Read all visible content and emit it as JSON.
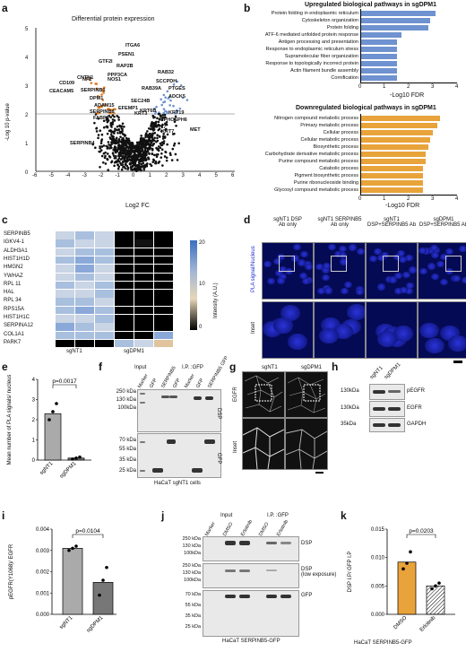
{
  "panels": {
    "a": {
      "letter": "a",
      "title": "Differential protein expression",
      "ylabel": "-Log 10 p-value",
      "xlabel": "Log2 FC",
      "xticks": [
        "-6",
        "-5",
        "-4",
        "-3",
        "-2",
        "-1",
        "0",
        "1",
        "2",
        "3",
        "4",
        "5",
        "6"
      ],
      "yticks": [
        "0",
        "1",
        "2",
        "3",
        "4",
        "5"
      ],
      "labels_up": [
        "RAB32",
        "SCCPDH",
        "RAB39A",
        "PTGES",
        "ADCK5",
        "KRT6B",
        "KRT19",
        "MPHOSPH6",
        "KRT17",
        "KRT7",
        "MET",
        "SEC24B"
      ],
      "labels_down": [
        "ITGA6",
        "PSEN1",
        "GTF2I",
        "RAP2B",
        "PPP3CA",
        "NF2",
        "CNTN1",
        "CD109",
        "CEACAM5",
        "SERPINB1",
        "DPM1",
        "ADAM15",
        "SERPINB8",
        "FABP5",
        "SERPINB4",
        "NOS1",
        "KRT3",
        "EFEMP1"
      ]
    },
    "b": {
      "letter": "b",
      "up_title": "Upregulated biological pathways in sgDPM1",
      "up_terms": [
        "Protein folding in endoplasmic reticulum",
        "Cytoskeleton organization",
        "Protein folding",
        "ATF-6 mediated unfolded protein response",
        "Antigen processing and presentation",
        "Response to endoplasmic reticulum stress",
        "Supramolecular fiber organization",
        "Response to topologically incorrect protein",
        "Actin filament bundle assembly",
        "Cornification"
      ],
      "up_values": [
        3.1,
        2.9,
        2.8,
        1.7,
        1.5,
        1.5,
        1.5,
        1.5,
        1.5,
        1.5
      ],
      "down_title": "Downregulated biological pathways in sgDPM1",
      "down_terms": [
        "Nitrogen compound metabolic process",
        "Primary metabolic process",
        "Cellular process",
        "Cellular metabolic process",
        "Biosynthetic process",
        "Carbohydrate derivative metabolic process",
        "Purine compound metabolic process",
        "Catabolic process",
        "Pigment biosynthetic process",
        "Purine ribonucleoside binding",
        "Glycosyl compound metabolic process"
      ],
      "down_values": [
        3.3,
        3.2,
        3.0,
        2.9,
        2.8,
        2.7,
        2.7,
        2.6,
        2.6,
        2.6,
        2.6
      ],
      "xlabel": "-Log10 FDR",
      "xticks": [
        "0",
        "1",
        "2",
        "3",
        "4"
      ],
      "up_color": "#6f92d0",
      "down_color": "#e8a33a"
    },
    "c": {
      "letter": "c",
      "genes": [
        "SERPINB5",
        "IGKV4-1",
        "ALDH3A1",
        "HIST1H1D",
        "HMGN2",
        "YWHAZ",
        "RPL 11",
        "HAL",
        "RPL 34",
        "RPS15A",
        "HIST1H1C",
        "SERPINA12",
        "COL1A1",
        "PARK7"
      ],
      "groups": [
        "sgNT1",
        "sgDPM1"
      ],
      "colorbar_label": "Intensity (A.U.)",
      "colorbar_ticks": [
        "20",
        "10",
        "0"
      ]
    },
    "d": {
      "letter": "d",
      "cols": [
        "sgNT1 DSP\nAb only",
        "sgNT1 SERPINB5\nAb only",
        "sgNT1\nDSP+SERPINB5 Ab",
        "sgDPM1\nDSP+SERPINB5 Ab"
      ],
      "row1_label": "PLA signal/Nucleus",
      "row2_label": "Inset"
    },
    "e": {
      "letter": "e",
      "ylabel": "Mean number of PLA signals/ nucleus",
      "yticks": [
        "0",
        "1",
        "2",
        "3",
        "4"
      ],
      "categories": [
        "sgNT1",
        "sgDPM1"
      ],
      "pvalue": "p=0.0017"
    },
    "f": {
      "letter": "f",
      "header_input": "Input",
      "header_ip": "I.P. :GFP",
      "lanes": [
        "Marker",
        "GFP",
        "SERPINB5",
        "GFP",
        "Marker",
        "GFP",
        "SERPINB5 GFP"
      ],
      "top_mw": [
        "250 kDa",
        "130 kDa",
        "100kDa"
      ],
      "bottom_mw": [
        "55 kDa",
        "35 kDa",
        "25 kDa"
      ],
      "mid_mw": [
        "70 kDa"
      ],
      "top_label": "DSP",
      "bottom_label": "GFP",
      "caption": "HaCaT sgNT1 cells"
    },
    "g": {
      "letter": "g",
      "cols": [
        "sgNT1",
        "sgDPM1"
      ],
      "row1_label": "EGFR",
      "row2_label": "Inset"
    },
    "h": {
      "letter": "h",
      "lanes": [
        "sgNT1",
        "sgDPM1"
      ],
      "mw": [
        "130kDa",
        "130kDa",
        "35kDa"
      ],
      "rows": [
        "pEGFR",
        "EGFR",
        "GAPDH"
      ]
    },
    "i": {
      "letter": "i",
      "ylabel": "pEGFR(Y1068)/ EGFR",
      "yticks": [
        "0.000",
        "0.001",
        "0.002",
        "0.003",
        "0.004"
      ],
      "categories": [
        "sgNT1",
        "sgDPM1"
      ],
      "pvalue": "p=0.0104"
    },
    "j": {
      "letter": "j",
      "header_input": "Input",
      "header_ip": "I.P. :GFP",
      "lanes": [
        "Marker",
        "DMSO",
        "Erlotinib",
        "DMSO",
        "Erlotinib"
      ],
      "mw_top": [
        "250 kDa",
        "130 kDa",
        "100kDa"
      ],
      "mw_mid": [
        "250 kDa",
        "130 kDa",
        "100kDa"
      ],
      "mw_bottom": [
        "70 kDa",
        "55 kDa",
        "35 kDa",
        "25 kDa"
      ],
      "rows": [
        "DSP",
        "DSP\n(low exposure)",
        "GFP"
      ],
      "caption": "HaCaT SERPINB5-GFP"
    },
    "k": {
      "letter": "k",
      "ylabel": "DSP I.P/ GFP I.P",
      "yticks": [
        "0.000",
        "0.005",
        "0.010",
        "0.015"
      ],
      "categories": [
        "DMSO",
        "Erlotinib"
      ],
      "pvalue": "p=0.0203",
      "caption": "HaCaT SERPINB5-GFP"
    }
  }
}
